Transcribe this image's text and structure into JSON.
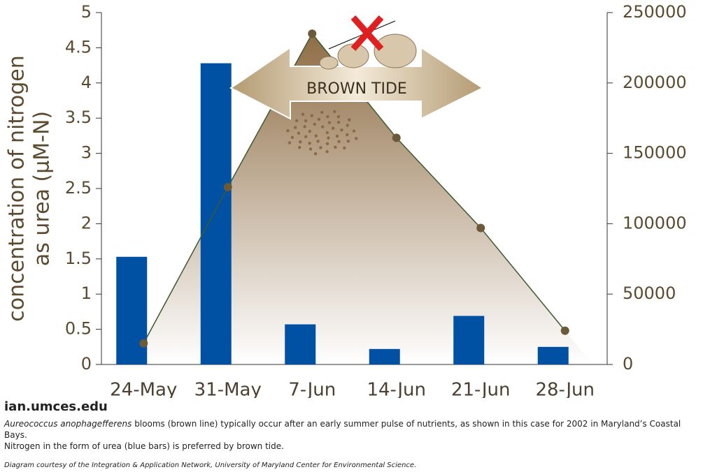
{
  "chart_data": {
    "type": "bar",
    "y_label_lines": [
      "concentration of nitrogen",
      "as urea (µM-N)"
    ],
    "categories": [
      "24-May",
      "31-May",
      "7-Jun",
      "14-Jun",
      "21-Jun",
      "28-Jun"
    ],
    "series": [
      {
        "type": "bar",
        "color": "#0050a4",
        "values": [
          1.53,
          4.28,
          0.57,
          0.22,
          0.69,
          0.25
        ]
      },
      {
        "type": "line",
        "axis": "y2",
        "color": "#6b5a3a",
        "values": [
          15000,
          126000,
          235000,
          161000,
          97000,
          24000
        ]
      }
    ],
    "ylim": [
      0,
      5
    ],
    "yticks": [
      0,
      0.5,
      1,
      1.5,
      2,
      2.5,
      3,
      3.5,
      4,
      4.5,
      5
    ],
    "y2lim": [
      0,
      250000
    ],
    "y2ticks": [
      0,
      50000,
      100000,
      150000,
      200000,
      250000
    ],
    "annotation": "BROWN TIDE"
  },
  "footer": {
    "logo": "ian.umces.edu",
    "caption_species": "Aureococcus anophagefferens",
    "caption_rest": " blooms (brown line) typically occur after an early summer pulse of nutrients, as shown in this case for 2002 in Maryland’s Coastal Bays.",
    "caption_line2": "Nitrogen in the form of urea (blue bars) is preferred by brown tide.",
    "credit": "Diagram courtesy of the Integration & Application Network, University of Maryland Center for Environmental Science."
  }
}
